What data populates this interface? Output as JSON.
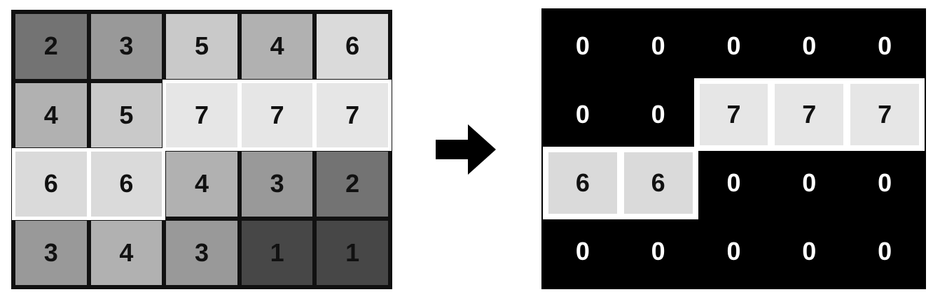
{
  "left_grid": {
    "rows": [
      [
        2,
        3,
        5,
        4,
        6
      ],
      [
        4,
        5,
        7,
        7,
        7
      ],
      [
        6,
        6,
        4,
        3,
        2
      ],
      [
        3,
        4,
        3,
        1,
        1
      ]
    ],
    "selected": [
      [
        1,
        2
      ],
      [
        1,
        3
      ],
      [
        1,
        4
      ],
      [
        2,
        0
      ],
      [
        2,
        1
      ]
    ]
  },
  "right_grid": {
    "rows": [
      [
        0,
        0,
        0,
        0,
        0
      ],
      [
        0,
        0,
        7,
        7,
        7
      ],
      [
        6,
        6,
        0,
        0,
        0
      ],
      [
        0,
        0,
        0,
        0,
        0
      ]
    ],
    "selected": [
      [
        1,
        2
      ],
      [
        1,
        3
      ],
      [
        1,
        4
      ],
      [
        2,
        0
      ],
      [
        2,
        1
      ]
    ]
  },
  "colors": {
    "gray_levels": {
      "1": "#474747",
      "2": "#737373",
      "3": "#999999",
      "4": "#b1b1b1",
      "5": "#c9c9c9",
      "6": "#dadada",
      "7": "#e6e6e6"
    },
    "background_zero": "#000000",
    "zero_text": "#ffffff",
    "dark_text": "#111111",
    "highlight_border": "#ffffff"
  },
  "arrow_icon": "right-arrow-icon"
}
